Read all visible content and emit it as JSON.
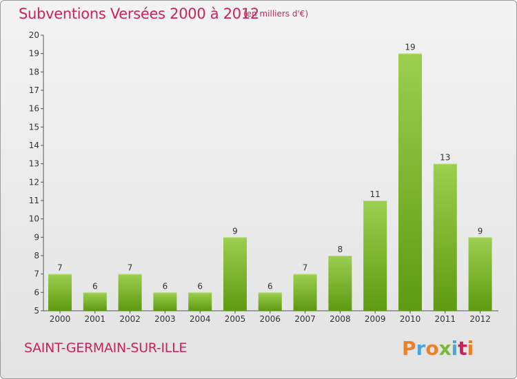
{
  "header": {
    "title": "Subventions Versées 2000 à 2012",
    "unit": "(en milliers d'€)"
  },
  "footer": {
    "commune": "SAINT-GERMAIN-SUR-ILLE",
    "logo_text": "Proxiti",
    "logo_colors": [
      "#e8832a",
      "#4aa5d6",
      "#e8832a",
      "#7ab83a",
      "#4aa5d6",
      "#c8245b",
      "#e8832a"
    ]
  },
  "colors": {
    "bar_top": "#9ccf50",
    "bar_bottom": "#5e9a12",
    "title": "#c8245b",
    "axis": "#555555"
  },
  "chart_data": {
    "type": "bar",
    "categories": [
      "2000",
      "2001",
      "2002",
      "2003",
      "2004",
      "2005",
      "2006",
      "2007",
      "2008",
      "2009",
      "2010",
      "2011",
      "2012"
    ],
    "values": [
      7,
      6,
      7,
      6,
      6,
      9,
      6,
      7,
      8,
      11,
      19,
      13,
      9
    ],
    "title": "Subventions Versées 2000 à 2012",
    "ylim": [
      5,
      20
    ],
    "yticks": [
      5,
      6,
      7,
      8,
      9,
      10,
      11,
      12,
      13,
      14,
      15,
      16,
      17,
      18,
      19,
      20
    ],
    "grid": false,
    "data_labels": true
  }
}
